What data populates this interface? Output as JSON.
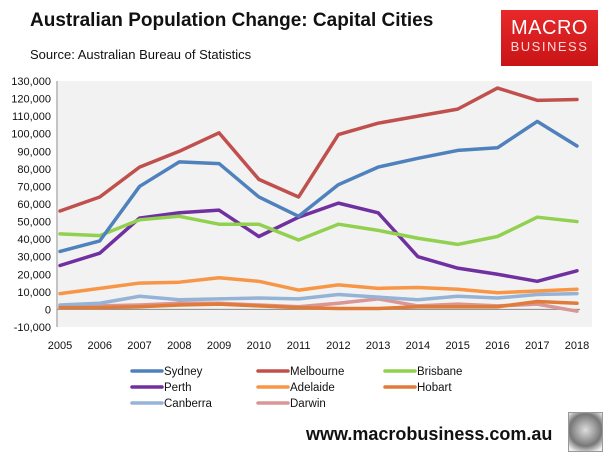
{
  "header": {
    "title": "Australian Population Change: Capital Cities",
    "source": "Source: Australian Bureau of Statistics",
    "logo_line1": "MACRO",
    "logo_line2": "BUSINESS",
    "url": "www.macrobusiness.com.au"
  },
  "chart_data": {
    "type": "line",
    "title": "Australian Population Change: Capital Cities",
    "x": [
      2005,
      2006,
      2007,
      2008,
      2009,
      2010,
      2011,
      2012,
      2013,
      2014,
      2015,
      2016,
      2017,
      2018
    ],
    "ylim": [
      -10000,
      130000
    ],
    "yticks": [
      -10000,
      0,
      10000,
      20000,
      30000,
      40000,
      50000,
      60000,
      70000,
      80000,
      90000,
      100000,
      110000,
      120000,
      130000
    ],
    "grid": false,
    "legend": "bottom",
    "series": [
      {
        "name": "Sydney",
        "color": "#4f81bd",
        "values": [
          33000,
          39000,
          70000,
          84000,
          83000,
          64000,
          53000,
          71000,
          81000,
          86000,
          90500,
          92000,
          107000,
          93000
        ]
      },
      {
        "name": "Melbourne",
        "color": "#c0504d",
        "values": [
          56000,
          64000,
          81000,
          90000,
          100500,
          74000,
          64000,
          99500,
          106000,
          110000,
          114000,
          126000,
          119000,
          119500
        ]
      },
      {
        "name": "Brisbane",
        "color": "#92d050",
        "values": [
          43000,
          42000,
          51000,
          53000,
          48500,
          48500,
          39500,
          48500,
          45000,
          40500,
          37000,
          41500,
          52500,
          50000
        ]
      },
      {
        "name": "Perth",
        "color": "#7030a0",
        "values": [
          25000,
          32000,
          52000,
          55000,
          56500,
          41500,
          52500,
          60500,
          55000,
          30000,
          23500,
          20000,
          16000,
          22000
        ]
      },
      {
        "name": "Adelaide",
        "color": "#f79646",
        "values": [
          9000,
          12000,
          15000,
          15500,
          18000,
          16000,
          11000,
          14000,
          12000,
          12500,
          11500,
          9500,
          10500,
          11500
        ]
      },
      {
        "name": "Hobart",
        "color": "#e07b39",
        "values": [
          1000,
          1000,
          1500,
          2500,
          3000,
          2000,
          1000,
          500,
          500,
          1500,
          1500,
          1500,
          4500,
          3500
        ]
      },
      {
        "name": "Canberra",
        "color": "#95b3d7",
        "values": [
          2500,
          3500,
          7500,
          5500,
          6000,
          6500,
          6000,
          8500,
          7000,
          5500,
          7500,
          6500,
          8500,
          9000
        ]
      },
      {
        "name": "Darwin",
        "color": "#d99694",
        "values": [
          2000,
          2000,
          2500,
          3500,
          3500,
          2500,
          1500,
          3500,
          6000,
          2000,
          3000,
          2000,
          3000,
          -1000
        ]
      }
    ]
  }
}
